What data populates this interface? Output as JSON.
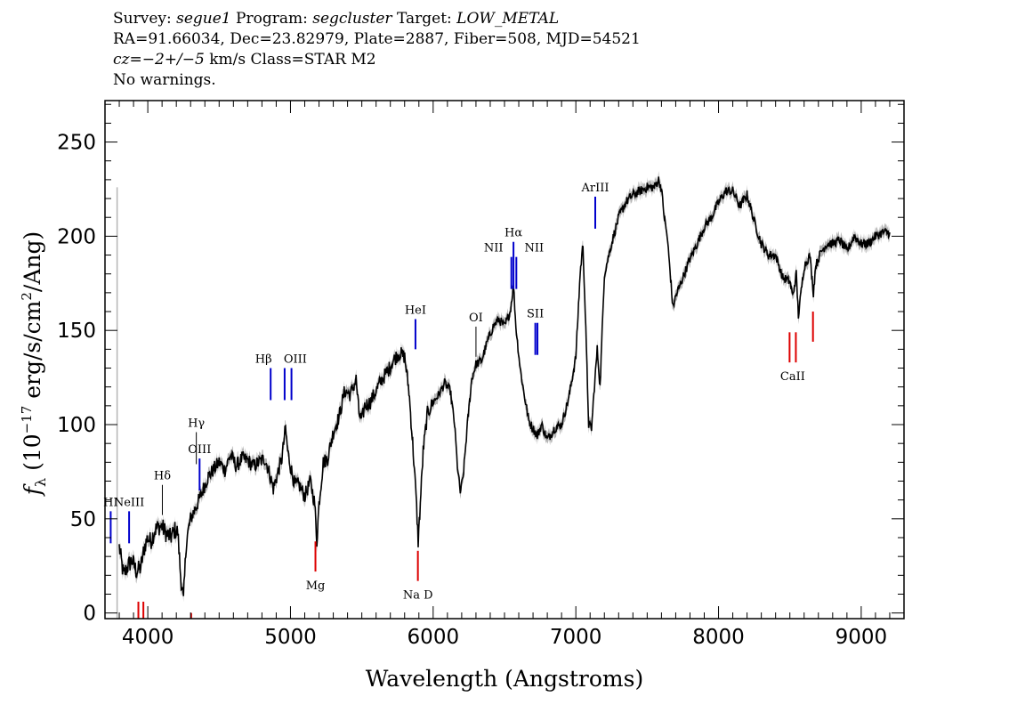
{
  "header": {
    "line1": {
      "survey_label": "Survey: ",
      "survey": "segue1",
      "program_label": " Program: ",
      "program": "segcluster",
      "target_label": " Target: ",
      "target": "LOW_METAL"
    },
    "line2": "RA=91.66034, Dec=23.82979, Plate=2887, Fiber=508, MJD=54521",
    "line3": {
      "cz_label": "cz",
      "cz_value": "=−2+/−5",
      "cz_rest": " km/s Class=STAR M2"
    },
    "line4": "No warnings."
  },
  "chart_data": {
    "type": "line",
    "xlabel": "Wavelength (Angstroms)",
    "ylabel": "fλ (10⁻¹⁷ erg/s/cm²/Ang)",
    "ylabel_parts": {
      "f": "f",
      "lambda": "λ",
      "pre": " (10",
      "exp": "−17",
      "mid": " erg/s/cm",
      "sq": "2",
      "post": "/Ang)"
    },
    "xlim": [
      3700,
      9300
    ],
    "ylim": [
      -3,
      272
    ],
    "xticks_major": [
      4000,
      5000,
      6000,
      7000,
      8000,
      9000
    ],
    "xtick_labels": [
      "4000",
      "5000",
      "6000",
      "7000",
      "8000",
      "9000"
    ],
    "yticks_major": [
      0,
      50,
      100,
      150,
      200,
      250
    ],
    "ytick_labels": [
      "0",
      "50",
      "100",
      "150",
      "200",
      "250"
    ],
    "colors": {
      "spectrum": "#000000",
      "error_band": "#b5b5b5",
      "emission": "#0000cc",
      "absorption": "#dd0000",
      "neutral": "#000000"
    },
    "spectrum": {
      "x": [
        3800,
        3830,
        3860,
        3890,
        3920,
        3950,
        3980,
        4000,
        4020,
        4050,
        4080,
        4100,
        4130,
        4160,
        4190,
        4210,
        4230,
        4250,
        4270,
        4300,
        4330,
        4360,
        4390,
        4420,
        4460,
        4500,
        4540,
        4580,
        4620,
        4660,
        4700,
        4740,
        4780,
        4820,
        4850,
        4880,
        4910,
        4940,
        4965,
        4980,
        5000,
        5030,
        5060,
        5100,
        5140,
        5170,
        5185,
        5200,
        5230,
        5260,
        5300,
        5340,
        5380,
        5420,
        5460,
        5480,
        5500,
        5520,
        5560,
        5600,
        5640,
        5680,
        5720,
        5760,
        5800,
        5830,
        5860,
        5880,
        5895,
        5910,
        5930,
        5960,
        6000,
        6040,
        6080,
        6120,
        6150,
        6170,
        6190,
        6210,
        6240,
        6270,
        6300,
        6340,
        6380,
        6420,
        6460,
        6500,
        6540,
        6563,
        6580,
        6610,
        6640,
        6670,
        6700,
        6730,
        6760,
        6800,
        6850,
        6900,
        6950,
        7000,
        7030,
        7050,
        7070,
        7090,
        7110,
        7130,
        7150,
        7170,
        7200,
        7250,
        7300,
        7350,
        7400,
        7450,
        7500,
        7550,
        7580,
        7600,
        7620,
        7640,
        7660,
        7680,
        7700,
        7750,
        7800,
        7850,
        7900,
        7950,
        8000,
        8050,
        8100,
        8150,
        8200,
        8250,
        8300,
        8350,
        8400,
        8450,
        8500,
        8520,
        8545,
        8560,
        8600,
        8640,
        8665,
        8680,
        8720,
        8760,
        8800,
        8850,
        8900,
        8950,
        9000,
        9050,
        9100,
        9150,
        9200
      ],
      "y": [
        35,
        20,
        25,
        28,
        22,
        24,
        36,
        40,
        38,
        44,
        46,
        46,
        42,
        40,
        44,
        43,
        20,
        6,
        38,
        50,
        55,
        60,
        66,
        72,
        76,
        80,
        76,
        84,
        78,
        82,
        81,
        78,
        80,
        82,
        75,
        66,
        74,
        82,
        98,
        86,
        78,
        68,
        68,
        62,
        70,
        58,
        38,
        58,
        80,
        82,
        96,
        104,
        118,
        116,
        124,
        106,
        102,
        110,
        112,
        118,
        124,
        128,
        134,
        138,
        136,
        118,
        86,
        62,
        38,
        58,
        86,
        106,
        112,
        116,
        122,
        118,
        100,
        78,
        64,
        72,
        100,
        124,
        132,
        134,
        144,
        152,
        156,
        152,
        160,
        174,
        152,
        130,
        115,
        102,
        98,
        94,
        100,
        92,
        98,
        100,
        114,
        136,
        180,
        196,
        150,
        100,
        98,
        120,
        140,
        120,
        180,
        196,
        210,
        218,
        222,
        224,
        226,
        226,
        230,
        225,
        210,
        200,
        182,
        162,
        168,
        178,
        188,
        196,
        205,
        210,
        218,
        224,
        224,
        216,
        222,
        208,
        196,
        190,
        190,
        178,
        176,
        168,
        180,
        158,
        184,
        190,
        170,
        184,
        192,
        196,
        196,
        198,
        192,
        200,
        196,
        196,
        200,
        202,
        202
      ]
    },
    "lines": [
      {
        "label": "HI",
        "x": 3740,
        "kind": "emission",
        "y1": 37,
        "y2": 54
      },
      {
        "label": "NeIII",
        "x": 3869,
        "kind": "emission",
        "y1": 37,
        "y2": 54
      },
      {
        "label": "Hδ",
        "x": 4102,
        "kind": "neutral",
        "y1": 52,
        "y2": 68
      },
      {
        "label": "Hγ",
        "x": 4340,
        "kind": "neutral",
        "y1": 79,
        "y2": 96
      },
      {
        "label": "OIII",
        "x": 4363,
        "kind": "emission",
        "y1": 65,
        "y2": 82
      },
      {
        "label": "Hβ",
        "x": 4861,
        "kind": "emission",
        "y1": 113,
        "y2": 130
      },
      {
        "label": "OIII",
        "x": 4959,
        "kind": "emission",
        "y1": 113,
        "y2": 130
      },
      {
        "label": "",
        "x": 5007,
        "kind": "emission",
        "y1": 113,
        "y2": 130
      },
      {
        "label": "HeI",
        "x": 5876,
        "kind": "emission",
        "y1": 140,
        "y2": 156
      },
      {
        "label": "OI",
        "x": 6300,
        "kind": "neutral",
        "y1": 136,
        "y2": 152
      },
      {
        "label": "NII",
        "x": 6548,
        "kind": "emission",
        "y1": 172,
        "y2": 189
      },
      {
        "label": "Hα",
        "x": 6563,
        "kind": "emission",
        "y1": 172,
        "y2": 197
      },
      {
        "label": "NII",
        "x": 6583,
        "kind": "emission",
        "y1": 172,
        "y2": 189
      },
      {
        "label": "SII",
        "x": 6716,
        "kind": "emission",
        "y1": 137,
        "y2": 154
      },
      {
        "label": "",
        "x": 6731,
        "kind": "emission",
        "y1": 137,
        "y2": 154
      },
      {
        "label": "ArIII",
        "x": 7136,
        "kind": "emission",
        "y1": 204,
        "y2": 221
      },
      {
        "label": "Mg",
        "x": 5175,
        "kind": "absorption",
        "y1": 22,
        "y2": 38
      },
      {
        "label": "Na D",
        "x": 5893,
        "kind": "absorption",
        "y1": 17,
        "y2": 33
      },
      {
        "label": "CaII",
        "x": 8498,
        "kind": "absorption",
        "y1": 133,
        "y2": 149
      },
      {
        "label": "",
        "x": 8542,
        "kind": "absorption",
        "y1": 133,
        "y2": 149
      },
      {
        "label": "",
        "x": 8662,
        "kind": "absorption",
        "y1": 144,
        "y2": 160
      },
      {
        "label": "",
        "x": 3934,
        "kind": "absorption",
        "y1": -3,
        "y2": 6
      },
      {
        "label": "",
        "x": 3969,
        "kind": "absorption",
        "y1": -3,
        "y2": 6
      },
      {
        "label": "",
        "x": 4304,
        "kind": "absorption",
        "y1": -3,
        "y2": 0
      }
    ]
  }
}
